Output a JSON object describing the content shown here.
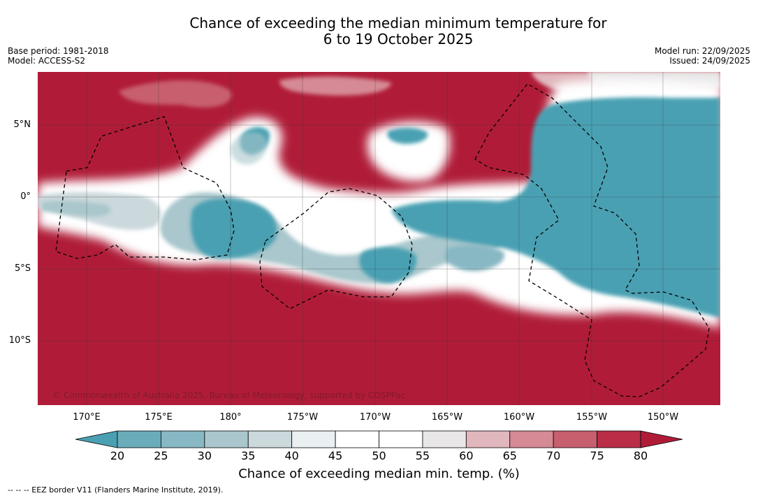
{
  "title_line1": "Chance of exceeding the median minimum temperature for",
  "title_line2": "6 to 19 October 2025",
  "base_period": "Base period: 1981-2018",
  "model": "Model: ACCESS-S2",
  "model_run": "Model run: 22/09/2025",
  "issued": "Issued: 24/09/2025",
  "copyright": "© Commonwealth of Australia 2025, Bureau of Meteorology, supported by COSPPac",
  "lon_labels": [
    "170°E",
    "175°E",
    "180°",
    "175°W",
    "170°W",
    "165°W",
    "160°W",
    "155°W",
    "150°W"
  ],
  "lat_labels": [
    "5°N",
    "0°",
    "5°S",
    "10°S"
  ],
  "colorbar": {
    "ticks": [
      "20",
      "25",
      "30",
      "35",
      "40",
      "45",
      "50",
      "55",
      "60",
      "65",
      "70",
      "75",
      "80"
    ],
    "colors": [
      "#4aa0b2",
      "#6aacba",
      "#88b8c4",
      "#a9c7cc",
      "#cbd8dc",
      "#eaf0f2",
      "#ffffff",
      "#ffffff",
      "#e8e6e7",
      "#e0b7bd",
      "#d58a95",
      "#c75f6e",
      "#b92d46",
      "#b01c38"
    ],
    "title": "Chance of exceeding median min. temp. (%)"
  },
  "footer": "--  --  -- EEZ border V11 (Flanders Marine Institute, 2019).",
  "colors": {
    "warm": "#b01c38",
    "cool": "#4aa0b2",
    "neutral": "#ffffff"
  }
}
